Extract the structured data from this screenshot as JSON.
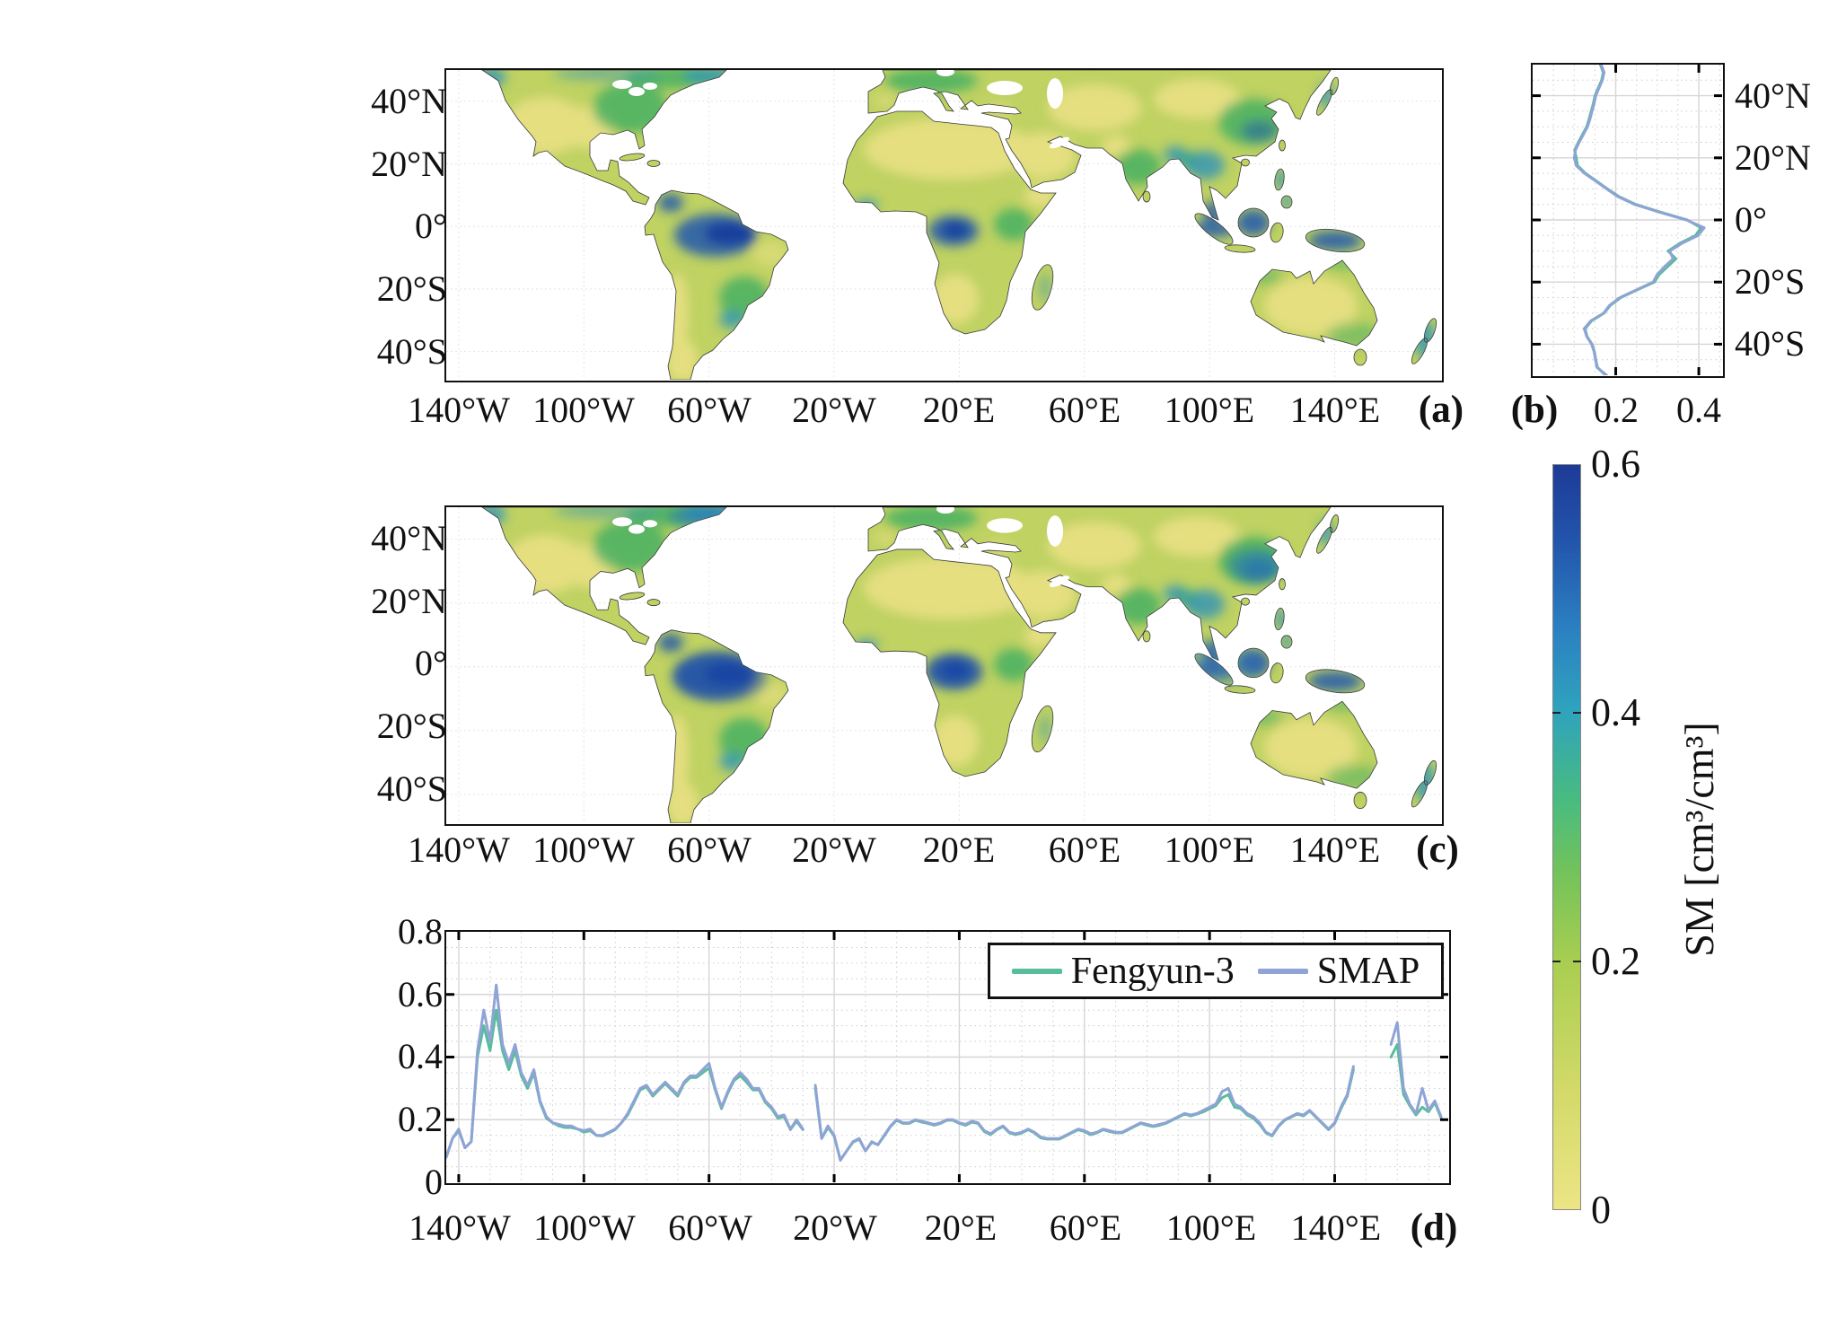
{
  "figure": {
    "lon_ticks": [
      "140°W",
      "100°W",
      "60°W",
      "20°W",
      "20°E",
      "60°E",
      "100°E",
      "140°E"
    ],
    "lat_ticks": [
      "40°N",
      "20°N",
      "0°",
      "20°S",
      "40°S"
    ],
    "panels": {
      "a": {
        "label": "(a)"
      },
      "b": {
        "label": "(b)",
        "x_ticks": [
          "0.2",
          "0.4"
        ]
      },
      "c": {
        "label": "(c)"
      },
      "d": {
        "label": "(d)",
        "y_ticks": [
          "0.8",
          "0.6",
          "0.4",
          "0.2",
          "0"
        ]
      }
    },
    "colorbar": {
      "label": "SM [cm³/cm³]",
      "ticks": [
        "0.6",
        "0.4",
        "0.2",
        "0"
      ]
    },
    "legend": {
      "items": [
        "Fengyun-3",
        "SMAP"
      ],
      "colors": {
        "Fengyun-3": "#57bd9b",
        "SMAP": "#8fa3d6"
      }
    }
  },
  "chart_data": [
    {
      "type": "heatmap",
      "panel": "a",
      "description": "Global soil moisture map, white ocean, land colored by SM",
      "variable": "SM [cm³/cm³]",
      "value_range": [
        0,
        0.6
      ],
      "lon_tick_values": [
        -140,
        -100,
        -60,
        -20,
        20,
        60,
        100,
        140
      ],
      "lat_tick_values": [
        40,
        20,
        0,
        -20,
        -40
      ],
      "colormap_stops": [
        [
          0,
          "#ece586"
        ],
        [
          0.1,
          "#d5da6b"
        ],
        [
          0.2,
          "#a9ce51"
        ],
        [
          0.27,
          "#74c35a"
        ],
        [
          0.33,
          "#49bb80"
        ],
        [
          0.4,
          "#2fa3bd"
        ],
        [
          0.47,
          "#2b80c1"
        ],
        [
          0.54,
          "#2254ab"
        ],
        [
          0.6,
          "#1d3b97"
        ]
      ],
      "regions_approx_sm": {
        "amazon_basin": 0.5,
        "congo_basin": 0.5,
        "indonesia_new_guinea": 0.45,
        "eastern_north_america": 0.32,
        "boreal_canada": 0.38,
        "western_europe": 0.3,
        "southeast_china": 0.38,
        "india": 0.28,
        "sahara_desert": 0.07,
        "arabian_peninsula": 0.08,
        "central_australia": 0.1,
        "southwest_usa_mexico": 0.12,
        "kalahari_namib": 0.12,
        "patagonia": 0.12,
        "central_asia": 0.12,
        "horn_of_africa": 0.1
      }
    },
    {
      "type": "line",
      "panel": "b",
      "orientation": "vertical_profile",
      "xlim": [
        0,
        0.45
      ],
      "x_ticks": [
        0.2,
        0.4
      ],
      "ylim_latitude": [
        -50,
        50
      ],
      "latitude": [
        50,
        47.5,
        45,
        42.5,
        40,
        37.5,
        35,
        32.5,
        30,
        27.5,
        25,
        22.5,
        20,
        17.5,
        15,
        12.5,
        10,
        7.5,
        5,
        2.5,
        0,
        -2.5,
        -5,
        -7.5,
        -10,
        -12.5,
        -15,
        -17.5,
        -20,
        -22.5,
        -25,
        -27.5,
        -30,
        -32.5,
        -35,
        -37.5,
        -40,
        -42.5,
        -45,
        -47.5,
        -50
      ],
      "series": [
        {
          "name": "Fengyun-3",
          "color": "#57bd9b",
          "values": [
            0.163,
            0.17,
            0.166,
            0.158,
            0.15,
            0.146,
            0.141,
            0.136,
            0.13,
            0.12,
            0.11,
            0.101,
            0.105,
            0.108,
            0.127,
            0.154,
            0.18,
            0.208,
            0.248,
            0.308,
            0.372,
            0.405,
            0.392,
            0.355,
            0.326,
            0.345,
            0.325,
            0.305,
            0.293,
            0.252,
            0.212,
            0.187,
            0.172,
            0.142,
            0.126,
            0.131,
            0.143,
            0.149,
            0.152,
            0.156,
            0.175
          ]
        },
        {
          "name": "SMAP",
          "color": "#8fa3d6",
          "values": [
            0.165,
            0.172,
            0.168,
            0.16,
            0.152,
            0.148,
            0.143,
            0.138,
            0.132,
            0.122,
            0.112,
            0.103,
            0.1,
            0.105,
            0.125,
            0.152,
            0.178,
            0.205,
            0.245,
            0.305,
            0.37,
            0.413,
            0.398,
            0.36,
            0.33,
            0.338,
            0.318,
            0.3,
            0.29,
            0.25,
            0.21,
            0.185,
            0.171,
            0.14,
            0.124,
            0.13,
            0.142,
            0.148,
            0.151,
            0.155,
            0.178
          ]
        }
      ]
    },
    {
      "type": "heatmap",
      "panel": "c",
      "description": "Global soil moisture map (nearly identical to panel a, slightly wetter tropics)",
      "variable": "SM [cm³/cm³]",
      "value_range": [
        0,
        0.6
      ],
      "lon_tick_values": [
        -140,
        -100,
        -60,
        -20,
        20,
        60,
        100,
        140
      ],
      "lat_tick_values": [
        40,
        20,
        0,
        -20,
        -40
      ],
      "regions_approx_sm": {
        "amazon_basin": 0.55,
        "congo_basin": 0.52,
        "indonesia_new_guinea": 0.48,
        "eastern_north_america": 0.33,
        "boreal_canada": 0.4,
        "southeast_china": 0.42,
        "sahara_desert": 0.07,
        "central_australia": 0.1
      }
    },
    {
      "type": "line",
      "panel": "d",
      "orientation": "longitudinal_profile",
      "ylim": [
        0,
        0.8
      ],
      "y_ticks": [
        0,
        0.2,
        0.4,
        0.6,
        0.8
      ],
      "xlim_longitude": [
        -144,
        176
      ],
      "x_tick_values": [
        -140,
        -100,
        -60,
        -20,
        20,
        60,
        100,
        140
      ],
      "legend_position": "top-right",
      "x_longitude": [
        -144,
        -142,
        -140,
        -138,
        -136,
        -134,
        -132,
        -130,
        -128,
        -126,
        -124,
        -122,
        -120,
        -118,
        -116,
        -114,
        -112,
        -110,
        -108,
        -106,
        -104,
        -102,
        -100,
        -98,
        -96,
        -94,
        -92,
        -90,
        -88,
        -86,
        -84,
        -82,
        -80,
        -78,
        -76,
        -74,
        -72,
        -70,
        -68,
        -66,
        -64,
        -62,
        -60,
        -58,
        -56,
        -54,
        -52,
        -50,
        -48,
        -46,
        -44,
        -42,
        -40,
        -38,
        -36,
        -34,
        -32,
        -30,
        -28,
        -26,
        -24,
        -22,
        -20,
        -18,
        -16,
        -14,
        -12,
        -10,
        -8,
        -6,
        -4,
        -2,
        0,
        2,
        4,
        6,
        8,
        10,
        12,
        14,
        16,
        18,
        20,
        22,
        24,
        26,
        28,
        30,
        32,
        34,
        36,
        38,
        40,
        42,
        44,
        46,
        48,
        50,
        52,
        54,
        56,
        58,
        60,
        62,
        64,
        66,
        68,
        70,
        72,
        74,
        76,
        78,
        80,
        82,
        84,
        86,
        88,
        90,
        92,
        94,
        96,
        98,
        100,
        102,
        104,
        106,
        108,
        110,
        112,
        114,
        116,
        118,
        120,
        122,
        124,
        126,
        128,
        130,
        132,
        134,
        136,
        138,
        140,
        142,
        144,
        146,
        148,
        150,
        152,
        154,
        156,
        158,
        160,
        162,
        164,
        166,
        168,
        170,
        172,
        174
      ],
      "series": [
        {
          "name": "Fengyun-3",
          "color": "#57bd9b",
          "values": [
            0.08,
            0.14,
            0.165,
            0.11,
            0.13,
            0.4,
            0.5,
            0.42,
            0.55,
            0.42,
            0.36,
            0.42,
            0.34,
            0.3,
            0.35,
            0.255,
            0.205,
            0.19,
            0.18,
            0.175,
            0.175,
            0.17,
            0.16,
            0.165,
            0.15,
            0.148,
            0.158,
            0.168,
            0.19,
            0.215,
            0.255,
            0.295,
            0.305,
            0.275,
            0.295,
            0.315,
            0.295,
            0.275,
            0.315,
            0.335,
            0.335,
            0.35,
            0.365,
            0.295,
            0.235,
            0.285,
            0.325,
            0.34,
            0.32,
            0.295,
            0.295,
            0.255,
            0.235,
            0.205,
            0.21,
            0.168,
            0.195,
            0.168,
            null,
            0.3,
            0.14,
            0.175,
            0.148,
            0.072,
            0.1,
            0.128,
            0.138,
            0.1,
            0.128,
            0.12,
            0.148,
            0.178,
            0.198,
            0.188,
            0.188,
            0.198,
            0.192,
            0.188,
            0.182,
            0.188,
            0.198,
            0.198,
            0.188,
            0.182,
            0.192,
            0.188,
            0.162,
            0.152,
            0.168,
            0.178,
            0.158,
            0.152,
            0.158,
            0.168,
            0.158,
            0.142,
            0.138,
            0.138,
            0.138,
            0.148,
            0.158,
            0.168,
            0.162,
            0.152,
            0.158,
            0.168,
            0.162,
            0.158,
            0.158,
            0.168,
            0.178,
            0.188,
            0.182,
            0.178,
            0.182,
            0.188,
            0.198,
            0.208,
            0.218,
            0.212,
            0.218,
            0.225,
            0.235,
            0.245,
            0.27,
            0.28,
            0.24,
            0.235,
            0.215,
            0.205,
            0.185,
            0.158,
            0.148,
            0.178,
            0.198,
            0.208,
            0.218,
            0.212,
            0.228,
            0.208,
            0.188,
            0.168,
            0.188,
            0.235,
            0.275,
            0.36,
            null,
            null,
            null,
            null,
            null,
            0.4,
            0.44,
            0.28,
            0.245,
            0.215,
            0.24,
            0.225,
            0.255,
            0.205
          ]
        },
        {
          "name": "SMAP",
          "color": "#8fa3d6",
          "values": [
            0.08,
            0.14,
            0.17,
            0.11,
            0.13,
            0.42,
            0.55,
            0.45,
            0.63,
            0.44,
            0.38,
            0.44,
            0.35,
            0.31,
            0.36,
            0.26,
            0.21,
            0.19,
            0.185,
            0.18,
            0.18,
            0.17,
            0.165,
            0.17,
            0.15,
            0.15,
            0.16,
            0.17,
            0.19,
            0.22,
            0.26,
            0.3,
            0.31,
            0.28,
            0.3,
            0.32,
            0.3,
            0.28,
            0.32,
            0.34,
            0.34,
            0.36,
            0.38,
            0.3,
            0.24,
            0.29,
            0.33,
            0.35,
            0.33,
            0.3,
            0.3,
            0.26,
            0.24,
            0.21,
            0.215,
            0.17,
            0.2,
            0.17,
            null,
            0.31,
            0.14,
            0.18,
            0.15,
            0.07,
            0.1,
            0.13,
            0.14,
            0.1,
            0.13,
            0.12,
            0.15,
            0.18,
            0.2,
            0.19,
            0.19,
            0.2,
            0.195,
            0.19,
            0.185,
            0.19,
            0.2,
            0.2,
            0.19,
            0.185,
            0.195,
            0.19,
            0.165,
            0.155,
            0.17,
            0.18,
            0.16,
            0.155,
            0.16,
            0.17,
            0.16,
            0.145,
            0.14,
            0.14,
            0.14,
            0.15,
            0.16,
            0.17,
            0.165,
            0.155,
            0.16,
            0.17,
            0.165,
            0.16,
            0.16,
            0.17,
            0.18,
            0.19,
            0.185,
            0.18,
            0.185,
            0.19,
            0.2,
            0.21,
            0.22,
            0.215,
            0.22,
            0.23,
            0.24,
            0.25,
            0.29,
            0.3,
            0.25,
            0.24,
            0.22,
            0.21,
            0.19,
            0.16,
            0.15,
            0.18,
            0.2,
            0.21,
            0.22,
            0.215,
            0.23,
            0.21,
            0.19,
            0.17,
            0.19,
            0.24,
            0.28,
            0.37,
            null,
            null,
            null,
            null,
            null,
            0.44,
            0.51,
            0.3,
            0.25,
            0.22,
            0.3,
            0.23,
            0.26,
            0.21
          ]
        }
      ]
    }
  ]
}
